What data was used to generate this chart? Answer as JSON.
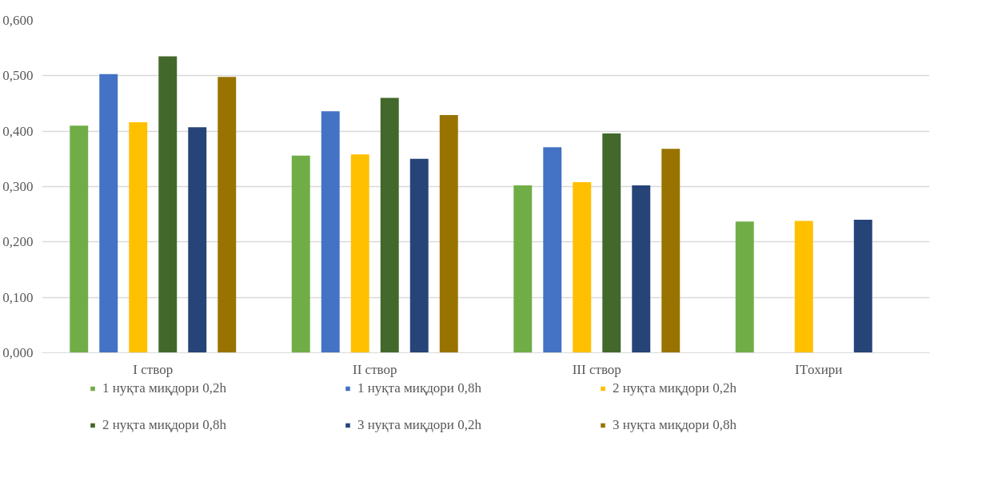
{
  "chart_data": {
    "type": "bar",
    "categories": [
      "I створ",
      "II створ",
      "III створ",
      "ITохири"
    ],
    "series": [
      {
        "name": "1 нуқта миқдори 0,2h",
        "color": "#70ad47",
        "values": [
          0.41,
          0.356,
          0.302,
          0.237
        ]
      },
      {
        "name": "1 нуқта миқдори 0,8h",
        "color": "#4472c4",
        "values": [
          0.503,
          0.436,
          0.371,
          null
        ]
      },
      {
        "name": "2 нуқта миқдори 0,2h",
        "color": "#ffc000",
        "values": [
          0.416,
          0.358,
          0.308,
          0.238
        ]
      },
      {
        "name": "2 нуқта миқдори 0,8h",
        "color": "#43682b",
        "values": [
          0.535,
          0.46,
          0.396,
          null
        ]
      },
      {
        "name": "3 нуқта миқдори 0,2h",
        "color": "#264478",
        "values": [
          0.407,
          0.35,
          0.302,
          0.24
        ]
      },
      {
        "name": "3 нуқта миқдори 0,8h",
        "color": "#997300",
        "values": [
          0.498,
          0.429,
          0.368,
          null
        ]
      }
    ],
    "ylim": [
      0,
      0.6
    ],
    "yticks": [
      {
        "value": 0,
        "label": "0,000"
      },
      {
        "value": 0.1,
        "label": "0,100"
      },
      {
        "value": 0.2,
        "label": "0,200"
      },
      {
        "value": 0.3,
        "label": "0,300"
      },
      {
        "value": 0.4,
        "label": "0,400"
      },
      {
        "value": 0.5,
        "label": "0,500"
      },
      {
        "value": 0.6,
        "label": "0,600"
      }
    ],
    "grid": "y",
    "legend": "bottom"
  }
}
